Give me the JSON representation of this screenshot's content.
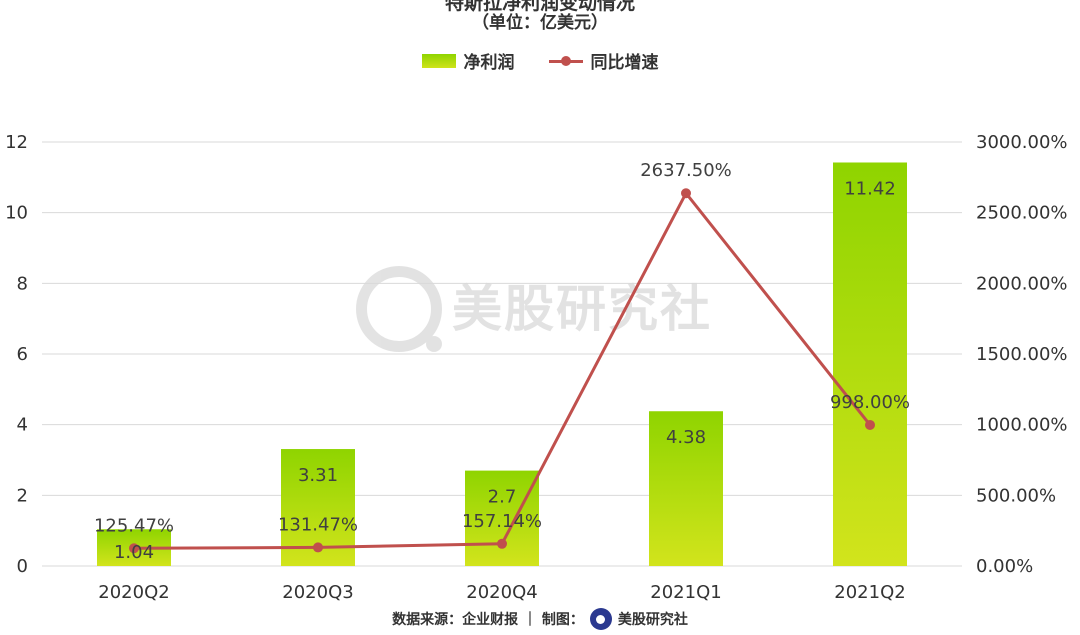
{
  "title": "特斯拉净利润变动情况",
  "subtitle": "（单位：亿美元）",
  "legend": {
    "bar_label": "净利润",
    "line_label": "同比增速"
  },
  "colors": {
    "bar_top": "#8fd400",
    "bar_bottom": "#d2e41c",
    "line": "#c0504d",
    "grid": "#d9d9d9"
  },
  "watermark": {
    "text": "美股研究社"
  },
  "footer": {
    "source": "数据来源：企业财报 ｜ 制图：",
    "brand": "美股研究社"
  },
  "chart_data": {
    "type": "bar",
    "categories": [
      "2020Q2",
      "2020Q3",
      "2020Q4",
      "2021Q1",
      "2021Q2"
    ],
    "series": [
      {
        "name": "净利润",
        "type": "bar",
        "axis": "left",
        "values": [
          1.04,
          3.31,
          2.7,
          4.38,
          11.42
        ],
        "labels": [
          "1.04",
          "3.31",
          "2.7",
          "4.38",
          "11.42"
        ]
      },
      {
        "name": "同比增速",
        "type": "line",
        "axis": "right",
        "values": [
          125.47,
          131.47,
          157.14,
          2637.5,
          998.0
        ],
        "labels": [
          "125.47%",
          "131.47%",
          "157.14%",
          "2637.50%",
          "998.00%"
        ]
      }
    ],
    "left_axis": {
      "ylim": [
        0,
        12
      ],
      "ticks": [
        "0",
        "2",
        "4",
        "6",
        "8",
        "10",
        "12"
      ]
    },
    "right_axis": {
      "ylim": [
        0,
        3000
      ],
      "ticks": [
        "0.00%",
        "500.00%",
        "1000.00%",
        "1500.00%",
        "2000.00%",
        "2500.00%",
        "3000.00%"
      ]
    },
    "grid": true,
    "legend_position": "top-center"
  }
}
